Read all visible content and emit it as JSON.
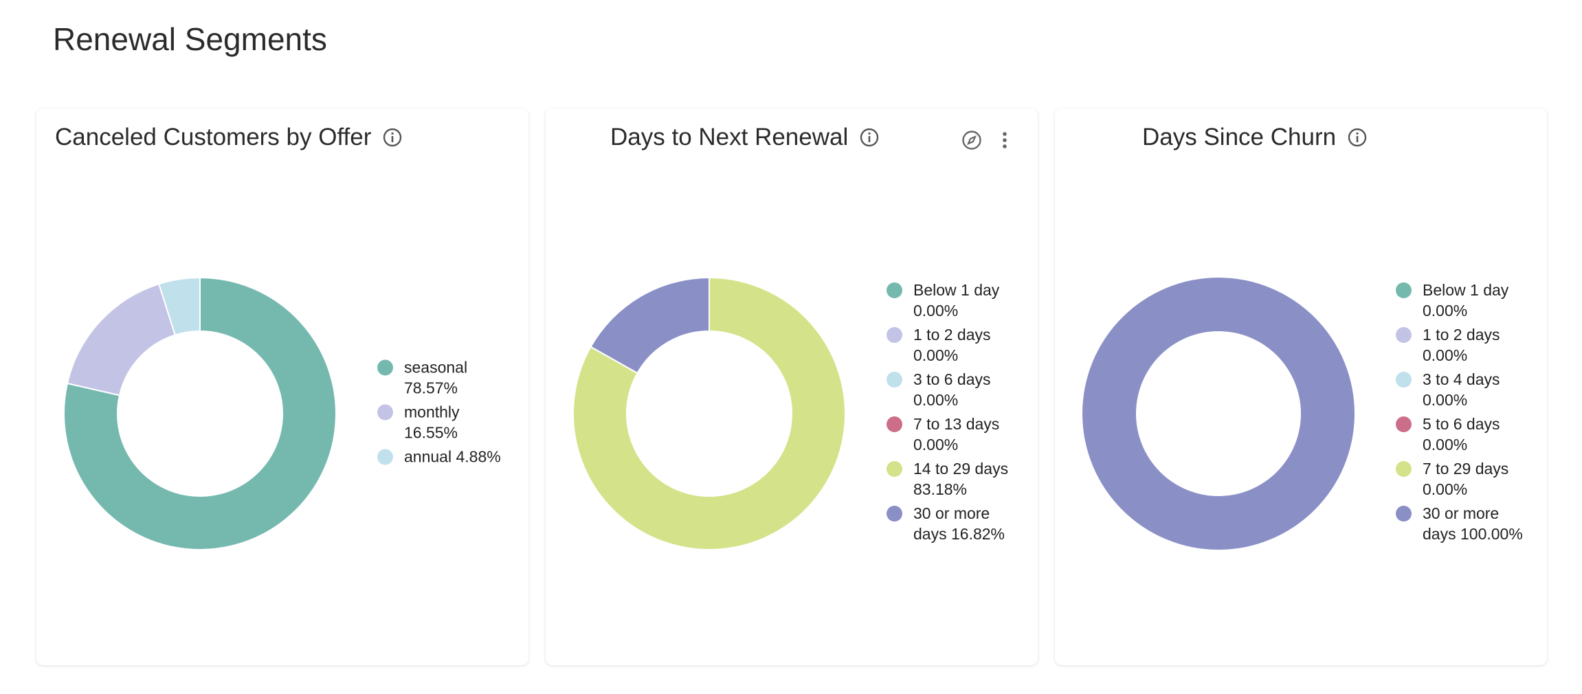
{
  "title": "Renewal Segments",
  "chart_data": [
    {
      "type": "donut",
      "title": "Canceled Customers by Offer",
      "categories": [
        "seasonal",
        "monthly",
        "annual"
      ],
      "values": [
        78.57,
        16.55,
        4.88
      ],
      "value_labels": [
        "78.57%",
        "16.55%",
        "4.88%"
      ],
      "colors": [
        "#75b9ae",
        "#c3c3e6",
        "#c0e0ec"
      ]
    },
    {
      "type": "donut",
      "title": "Days to Next Renewal",
      "categories": [
        "Below 1 day",
        "1 to 2 days",
        "3 to 6 days",
        "7 to 13 days",
        "14 to 29 days",
        "30 or more days"
      ],
      "values": [
        0,
        0,
        0,
        0,
        83.18,
        16.82
      ],
      "value_labels": [
        "0.00%",
        "0.00%",
        "0.00%",
        "0.00%",
        "83.18%",
        "16.82%"
      ],
      "colors": [
        "#75b9ae",
        "#c3c3e6",
        "#c0e0ec",
        "#cc6e8a",
        "#d4e38a",
        "#8a90c6"
      ]
    },
    {
      "type": "donut",
      "title": "Days Since Churn",
      "categories": [
        "Below 1 day",
        "1 to 2 days",
        "3 to 4 days",
        "5 to 6 days",
        "7 to 29 days",
        "30 or more days"
      ],
      "values": [
        0,
        0,
        0,
        0,
        0,
        100
      ],
      "value_labels": [
        "0.00%",
        "0.00%",
        "0.00%",
        "0.00%",
        "0.00%",
        "100.00%"
      ],
      "colors": [
        "#75b9ae",
        "#c3c3e6",
        "#c0e0ec",
        "#cc6e8a",
        "#d4e38a",
        "#8a90c6"
      ]
    }
  ]
}
